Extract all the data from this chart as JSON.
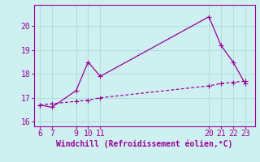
{
  "line1_x": [
    6,
    7,
    9,
    10,
    11,
    20,
    21,
    22,
    23
  ],
  "line1_y": [
    16.7,
    16.6,
    17.3,
    18.5,
    17.9,
    20.4,
    19.2,
    18.5,
    17.6
  ],
  "line2_x": [
    6,
    7,
    9,
    10,
    11,
    20,
    21,
    22,
    23
  ],
  "line2_y": [
    16.7,
    16.75,
    16.85,
    16.9,
    17.0,
    17.5,
    17.6,
    17.65,
    17.7
  ],
  "line_color": "#990099",
  "bg_color": "#cff0f0",
  "grid_color": "#b0dede",
  "xlabel": "Windchill (Refroidissement éolien,°C)",
  "xticks": [
    6,
    7,
    9,
    10,
    11,
    20,
    21,
    22,
    23
  ],
  "yticks": [
    16,
    17,
    18,
    19,
    20
  ],
  "xlim": [
    5.5,
    23.8
  ],
  "ylim": [
    15.8,
    20.9
  ],
  "xlabel_color": "#990099",
  "tick_color": "#990099",
  "markersize": 3,
  "title_fontsize": 7,
  "tick_fontsize": 7
}
